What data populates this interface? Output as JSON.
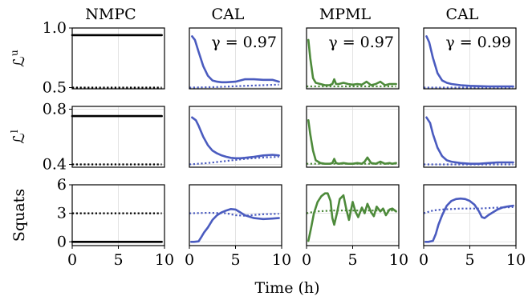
{
  "column_titles": [
    "NMPC",
    "CAL",
    "MPML",
    "CAL"
  ],
  "gamma_labels": [
    "",
    "γ = 0.97",
    "γ = 0.97",
    "γ = 0.99"
  ],
  "row_labels": [
    "ℒu",
    "ℒl",
    "Squats"
  ],
  "xlabel": "Time (h)",
  "colors": {
    "cal": "#4a5bbf",
    "mpml": "#4d8a3a",
    "nmpc": "#000000"
  },
  "chart_data": {
    "type": "line",
    "xlim": [
      0,
      10
    ],
    "xticks": [
      0,
      5,
      10
    ],
    "rows": [
      {
        "name": "ℒu",
        "ylim": [
          0.49,
          1.0
        ],
        "yticks": [
          0.5,
          1.0
        ],
        "ytick_labels": [
          "0.5",
          "1.0"
        ],
        "panels": [
          {
            "column": "NMPC",
            "solid": {
              "x": [
                0,
                9.7
              ],
              "y": [
                0.94,
                0.94
              ],
              "color": "#000000"
            },
            "dotted": {
              "x": [
                0,
                9.7
              ],
              "y": [
                0.5,
                0.5
              ],
              "color": "#000000"
            }
          },
          {
            "column": "CAL",
            "solid": {
              "x": [
                0.3,
                0.6,
                1,
                1.5,
                2,
                2.5,
                3,
                3.5,
                4,
                5,
                6,
                7,
                8,
                9,
                9.7
              ],
              "y": [
                0.93,
                0.9,
                0.8,
                0.68,
                0.6,
                0.56,
                0.55,
                0.545,
                0.545,
                0.55,
                0.57,
                0.57,
                0.565,
                0.565,
                0.55
              ],
              "color": "#4a5bbf"
            },
            "dotted": {
              "x": [
                0,
                3,
                6,
                9.7
              ],
              "y": [
                0.5,
                0.505,
                0.515,
                0.525
              ],
              "color": "#4a5bbf"
            }
          },
          {
            "column": "MPML",
            "solid": {
              "x": [
                0.2,
                0.4,
                0.7,
                1,
                1.5,
                2,
                2.5,
                2.8,
                3,
                3.2,
                3.5,
                4,
                4.5,
                5,
                5.5,
                6,
                6.5,
                7,
                7.5,
                8,
                8.5,
                9,
                9.7
              ],
              "y": [
                0.9,
                0.75,
                0.58,
                0.54,
                0.53,
                0.52,
                0.52,
                0.53,
                0.57,
                0.53,
                0.53,
                0.54,
                0.53,
                0.525,
                0.53,
                0.525,
                0.55,
                0.52,
                0.53,
                0.55,
                0.52,
                0.53,
                0.53
              ],
              "color": "#4d8a3a"
            },
            "dotted": {
              "x": [
                0,
                9.7
              ],
              "y": [
                0.51,
                0.51
              ],
              "color": "#4d8a3a"
            }
          },
          {
            "column": "CAL",
            "solid": {
              "x": [
                0.3,
                0.6,
                1,
                1.5,
                2,
                2.5,
                3,
                4,
                5,
                6,
                7,
                8,
                9,
                9.7
              ],
              "y": [
                0.93,
                0.88,
                0.75,
                0.62,
                0.56,
                0.54,
                0.53,
                0.52,
                0.515,
                0.512,
                0.51,
                0.51,
                0.51,
                0.51
              ],
              "color": "#4a5bbf"
            },
            "dotted": {
              "x": [
                0,
                9.7
              ],
              "y": [
                0.5,
                0.5
              ],
              "color": "#4a5bbf"
            }
          }
        ]
      },
      {
        "name": "ℒl",
        "ylim": [
          0.38,
          0.82
        ],
        "yticks": [
          0.4,
          0.8
        ],
        "ytick_labels": [
          "0.4",
          "0.8"
        ],
        "panels": [
          {
            "column": "NMPC",
            "solid": {
              "x": [
                0,
                9.7
              ],
              "y": [
                0.75,
                0.75
              ],
              "color": "#000000"
            },
            "dotted": {
              "x": [
                0,
                9.7
              ],
              "y": [
                0.4,
                0.4
              ],
              "color": "#000000"
            }
          },
          {
            "column": "CAL",
            "solid": {
              "x": [
                0.3,
                0.7,
                1,
                1.5,
                2,
                2.5,
                3,
                3.5,
                4,
                4.5,
                5,
                5.5,
                6,
                7,
                8,
                9,
                9.7
              ],
              "y": [
                0.74,
                0.72,
                0.68,
                0.6,
                0.54,
                0.5,
                0.48,
                0.465,
                0.455,
                0.448,
                0.445,
                0.445,
                0.448,
                0.455,
                0.465,
                0.47,
                0.465
              ],
              "color": "#4a5bbf"
            },
            "dotted": {
              "x": [
                0,
                2,
                4,
                6,
                8,
                9.7
              ],
              "y": [
                0.4,
                0.41,
                0.425,
                0.44,
                0.45,
                0.455
              ],
              "color": "#4a5bbf"
            }
          },
          {
            "column": "MPML",
            "solid": {
              "x": [
                0.2,
                0.4,
                0.7,
                1,
                1.5,
                2,
                2.5,
                2.8,
                3,
                3.2,
                3.5,
                4,
                4.5,
                5,
                5.5,
                6,
                6.3,
                6.6,
                7,
                7.5,
                8,
                8.5,
                9,
                9.3,
                9.7
              ],
              "y": [
                0.72,
                0.62,
                0.5,
                0.43,
                0.41,
                0.405,
                0.405,
                0.41,
                0.44,
                0.41,
                0.405,
                0.41,
                0.405,
                0.405,
                0.41,
                0.405,
                0.42,
                0.45,
                0.41,
                0.405,
                0.42,
                0.405,
                0.41,
                0.405,
                0.41
              ],
              "color": "#4d8a3a"
            },
            "dotted": {
              "x": [
                0,
                9.7
              ],
              "y": [
                0.405,
                0.405
              ],
              "color": "#4d8a3a"
            }
          },
          {
            "column": "CAL",
            "solid": {
              "x": [
                0.3,
                0.7,
                1,
                1.5,
                2,
                2.5,
                3,
                4,
                5,
                6,
                7,
                8,
                9,
                9.7
              ],
              "y": [
                0.74,
                0.7,
                0.62,
                0.52,
                0.46,
                0.43,
                0.42,
                0.41,
                0.405,
                0.405,
                0.41,
                0.415,
                0.415,
                0.415
              ],
              "color": "#4a5bbf"
            },
            "dotted": {
              "x": [
                0,
                3,
                6,
                9.7
              ],
              "y": [
                0.4,
                0.4,
                0.4,
                0.4
              ],
              "color": "#4a5bbf"
            }
          }
        ]
      },
      {
        "name": "Squats",
        "ylim": [
          -0.4,
          6
        ],
        "yticks": [
          0,
          3,
          6
        ],
        "ytick_labels": [
          "0",
          "3",
          "6"
        ],
        "panels": [
          {
            "column": "NMPC",
            "solid": {
              "x": [
                0,
                9.7
              ],
              "y": [
                0,
                0
              ],
              "color": "#000000"
            },
            "dotted": {
              "x": [
                0,
                9.7
              ],
              "y": [
                3,
                3
              ],
              "color": "#000000"
            }
          },
          {
            "column": "CAL",
            "solid": {
              "x": [
                0.2,
                0.5,
                1,
                1.3,
                1.6,
                2,
                2.5,
                3,
                3.5,
                4,
                4.5,
                5,
                5.5,
                6,
                7,
                8,
                9,
                9.7
              ],
              "y": [
                0,
                0,
                0.05,
                0.5,
                1,
                1.5,
                2.3,
                2.8,
                3.1,
                3.3,
                3.45,
                3.4,
                3.1,
                2.8,
                2.5,
                2.4,
                2.45,
                2.5
              ],
              "color": "#4a5bbf"
            },
            "dotted": {
              "x": [
                0,
                2,
                4,
                5,
                6,
                8,
                9.7
              ],
              "y": [
                3,
                3.05,
                3.0,
                2.8,
                2.75,
                2.9,
                2.95
              ],
              "color": "#4a5bbf"
            }
          },
          {
            "column": "MPML",
            "solid": {
              "x": [
                0.2,
                0.5,
                0.8,
                1.2,
                1.6,
                2,
                2.3,
                2.6,
                2.8,
                3,
                3.3,
                3.6,
                4,
                4.3,
                4.6,
                5,
                5.3,
                5.6,
                6,
                6.3,
                6.6,
                7,
                7.3,
                7.6,
                8,
                8.3,
                8.6,
                9,
                9.3,
                9.7
              ],
              "y": [
                0.1,
                1.5,
                3,
                4.2,
                4.8,
                5.1,
                5.1,
                4.3,
                2.5,
                1.8,
                3.0,
                4.5,
                4.9,
                3.5,
                2.3,
                4.2,
                3.2,
                2.6,
                3.6,
                3.0,
                4.0,
                3.1,
                2.7,
                3.7,
                3.2,
                3.5,
                2.8,
                3.4,
                3.5,
                3.2
              ],
              "color": "#4d8a3a"
            },
            "dotted": {
              "x": [
                0,
                1,
                3,
                6,
                9.7
              ],
              "y": [
                3.0,
                3.2,
                3.3,
                3.3,
                3.3
              ],
              "color": "#4d8a3a"
            }
          },
          {
            "column": "CAL",
            "solid": {
              "x": [
                0.2,
                0.5,
                1,
                1.3,
                1.6,
                2,
                2.5,
                3,
                3.5,
                4,
                4.5,
                5,
                5.5,
                6,
                6.3,
                6.6,
                7,
                7.5,
                8,
                8.5,
                9,
                9.7
              ],
              "y": [
                0,
                0,
                0.1,
                0.8,
                1.8,
                2.8,
                3.8,
                4.3,
                4.5,
                4.55,
                4.5,
                4.3,
                3.9,
                3.2,
                2.6,
                2.5,
                2.8,
                3.1,
                3.4,
                3.6,
                3.7,
                3.8
              ],
              "color": "#4a5bbf"
            },
            "dotted": {
              "x": [
                0,
                1,
                2,
                4,
                6,
                8,
                9.7
              ],
              "y": [
                3.0,
                3.3,
                3.4,
                3.5,
                3.5,
                3.6,
                3.65
              ],
              "color": "#4a5bbf"
            }
          }
        ]
      }
    ]
  }
}
